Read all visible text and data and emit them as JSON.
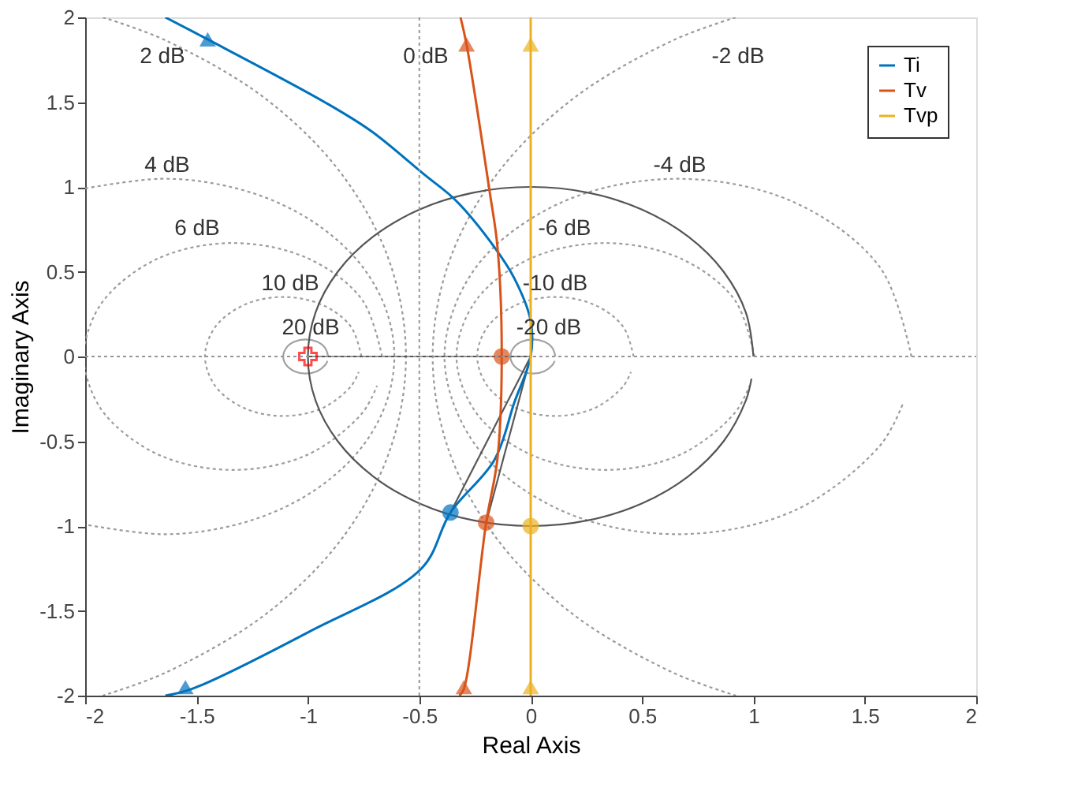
{
  "chart_data": {
    "type": "line",
    "xlabel": "Real Axis",
    "ylabel": "Imaginary Axis",
    "xlim": [
      -2,
      2
    ],
    "ylim": [
      -2,
      2
    ],
    "xticks": [
      -2,
      -1.5,
      -1,
      -0.5,
      0,
      0.5,
      1,
      1.5,
      2
    ],
    "yticks": [
      -2,
      -1.5,
      -1,
      -0.5,
      0,
      0.5,
      1,
      1.5,
      2
    ],
    "grid": false,
    "legend": "top right",
    "series": [
      {
        "color": "#999999",
        "line_style": "dotted",
        "x": [
          -1.921,
          -1.635,
          -1.19,
          -0.848,
          -0.633,
          -0.56,
          -0.633,
          -0.848,
          -1.19,
          -1.635,
          -1.921
        ],
        "values": [
          2,
          1.862,
          1.52,
          1.075,
          0.556,
          0,
          -0.556,
          -1.075,
          -1.52,
          -1.862,
          -2
        ]
      },
      {
        "color": "#9a9a9a",
        "line_style": "dotted",
        "x": [
          0.921,
          0.635,
          0.19,
          -0.152,
          -0.367,
          -0.44,
          -0.367,
          -0.152,
          0.19,
          0.635,
          0.921
        ],
        "values": [
          2,
          1.862,
          1.52,
          1.075,
          0.556,
          0,
          -0.556,
          -1.075,
          -1.52,
          -1.862,
          -2
        ]
      },
      {
        "color": "#9b9b9b",
        "line_style": "dotted",
        "x": [
          -2,
          -1.66,
          -1.389,
          -1.136,
          -0.919,
          -0.752,
          -0.648,
          -0.612,
          -0.648,
          -0.752,
          -0.919,
          -1.136,
          -1.389,
          -1.66,
          -2
        ],
        "values": [
          0.991,
          1.048,
          1.012,
          0.908,
          0.741,
          0.524,
          0.271,
          0,
          -0.271,
          -0.524,
          -0.741,
          -0.908,
          -1.012,
          -1.048,
          -0.991
        ]
      },
      {
        "color": "#9c9c9c",
        "line_style": "dotted",
        "x": [
          1.709,
          1.569,
          1.185,
          0.661,
          0.137,
          -0.247,
          -0.387,
          -0.247,
          0.137,
          0.661,
          1.185,
          1.569,
          1.673
        ],
        "values": [
          0,
          0.524,
          0.908,
          1.048,
          0.908,
          0.524,
          0,
          -0.524,
          -0.908,
          -1.048,
          -0.908,
          -0.524,
          -0.271
        ]
      },
      {
        "color": "#9d9d9d",
        "line_style": "dotted",
        "x": [
          -0.667,
          -0.757,
          -1.001,
          -1.336,
          -1.671,
          -1.915,
          -2,
          -2,
          -1.915,
          -1.671,
          -1.336,
          -1.001,
          -0.757,
          -0.69
        ],
        "values": [
          0,
          0.335,
          0.579,
          0.669,
          0.579,
          0.335,
          0.082,
          -0.082,
          -0.335,
          -0.579,
          -0.669,
          -0.579,
          -0.335,
          -0.173
        ]
      },
      {
        "color": "#9e9e9e",
        "line_style": "dotted",
        "x": [
          1.005,
          0.915,
          0.671,
          0.336,
          0.001,
          -0.243,
          -0.333,
          -0.243,
          0.001,
          0.336,
          0.671,
          0.915,
          0.982
        ],
        "values": [
          0,
          0.335,
          0.579,
          0.669,
          0.579,
          0.335,
          0,
          -0.335,
          -0.579,
          -0.669,
          -0.579,
          -0.335,
          -0.173
        ]
      },
      {
        "color": "#9f9f9f",
        "line_style": "dotted",
        "x": [
          -0.76,
          -0.807,
          -0.935,
          -1.111,
          -1.287,
          -1.415,
          -1.462,
          -1.415,
          -1.287,
          -1.111,
          -0.935,
          -0.807,
          -0.772
        ],
        "values": [
          0,
          0.176,
          0.304,
          0.351,
          0.304,
          0.176,
          0,
          -0.176,
          -0.304,
          -0.351,
          -0.304,
          -0.176,
          -0.091
        ]
      },
      {
        "color": "#a0a0a0",
        "line_style": "dotted",
        "x": [
          0.462,
          0.415,
          0.287,
          0.111,
          -0.065,
          -0.193,
          -0.24,
          -0.193,
          -0.065,
          0.111,
          0.287,
          0.415,
          0.45
        ],
        "values": [
          0,
          0.176,
          0.304,
          0.351,
          0.304,
          0.176,
          0,
          -0.176,
          -0.304,
          -0.351,
          -0.304,
          -0.176,
          -0.091
        ]
      },
      {
        "color": "#a1a1a1",
        "line_style": "solid",
        "x": [
          -0.909,
          -0.923,
          -0.959,
          -1.01,
          -1.061,
          -1.097,
          -1.111,
          -1.097,
          -1.061,
          -1.01,
          -0.959,
          -0.923,
          -0.912
        ],
        "values": [
          0,
          0.051,
          0.087,
          0.101,
          0.087,
          0.051,
          0,
          -0.051,
          -0.087,
          -0.101,
          -0.087,
          -0.051,
          -0.026
        ]
      },
      {
        "color": "#a2a2a2",
        "line_style": "solid",
        "x": [
          0.111,
          0.097,
          0.061,
          0.01,
          -0.041,
          -0.077,
          -0.091,
          -0.077,
          -0.041,
          0.01,
          0.061,
          0.097,
          0.108
        ],
        "values": [
          0,
          0.051,
          0.087,
          0.101,
          0.087,
          0.051,
          0,
          -0.051,
          -0.087,
          -0.101,
          -0.087,
          -0.051,
          -0.026
        ]
      },
      {
        "color": "#555555",
        "line_style": "solid",
        "x": [
          1,
          0.966,
          0.866,
          0.707,
          0.5,
          0.259,
          0,
          -0.259,
          -0.5,
          -0.707,
          -0.866,
          -0.966,
          -1,
          -0.966,
          -0.866,
          -0.707,
          -0.5,
          -0.259,
          0,
          0.259,
          0.5,
          0.707,
          0.866,
          0.966,
          0.991
        ],
        "values": [
          0,
          0.259,
          0.5,
          0.707,
          0.866,
          0.966,
          1,
          0.966,
          0.866,
          0.707,
          0.5,
          0.259,
          0,
          -0.259,
          -0.5,
          -0.707,
          -0.866,
          -0.966,
          -1,
          -0.966,
          -0.866,
          -0.707,
          -0.5,
          -0.259,
          -0.131
        ]
      },
      {
        "color": "#565656",
        "line_style": "solid",
        "x": [
          -1,
          0
        ],
        "values": [
          0,
          0
        ]
      },
      {
        "color": "#575757",
        "line_style": "solid",
        "x": [
          0,
          -0.36
        ],
        "values": [
          0,
          -0.92
        ]
      },
      {
        "color": "#585858",
        "line_style": "solid",
        "x": [
          0,
          -0.2
        ],
        "values": [
          0,
          -0.98
        ]
      },
      {
        "name": "Ti",
        "color": "#0072bd",
        "line_style": "solid",
        "x": [
          -1.64,
          -1.45,
          -0.925,
          -0.717,
          -0.475,
          -0.336,
          -0.163,
          -0.073,
          0,
          0,
          -0.073,
          -0.163,
          -0.36,
          -0.49,
          -0.99,
          -1.52,
          -1.64
        ],
        "values": [
          2,
          1.87,
          1.5,
          1.33,
          1.07,
          0.92,
          0.645,
          0.46,
          0.21,
          0,
          -0.27,
          -0.61,
          -0.92,
          -1.25,
          -1.62,
          -1.96,
          -2
        ]
      },
      {
        "name": "Tv",
        "color": "#d95319",
        "line_style": "solid",
        "x": [
          -0.315,
          -0.288,
          -0.184,
          -0.149,
          -0.13,
          -0.149,
          -0.2,
          -0.3,
          -0.32
        ],
        "values": [
          2,
          1.84,
          0.97,
          0.645,
          0,
          -0.6,
          -0.98,
          -1.96,
          -2
        ]
      },
      {
        "name": "Tvp",
        "color": "#edb120",
        "line_style": "solid",
        "x": [
          0,
          0
        ],
        "values": [
          2,
          -2
        ]
      },
      {
        "type": "scatter",
        "color": "#0072bd",
        "marker": "circle",
        "x": [
          -0.36
        ],
        "values": [
          -0.92
        ]
      },
      {
        "type": "scatter",
        "color": "#0072bd",
        "marker": "triangle",
        "x": [
          -1.45,
          -1.55
        ],
        "values": [
          1.87,
          -1.95
        ]
      },
      {
        "type": "scatter",
        "color": "#d95319",
        "marker": "circle",
        "x": [
          -0.13,
          -0.2
        ],
        "values": [
          0,
          -0.98
        ]
      },
      {
        "type": "scatter",
        "color": "#d95319",
        "marker": "triangle",
        "x": [
          -0.288,
          -0.3
        ],
        "values": [
          1.84,
          -1.95
        ]
      },
      {
        "type": "scatter",
        "color": "#edb120",
        "marker": "circle",
        "x": [
          0
        ],
        "values": [
          -1
        ]
      },
      {
        "type": "scatter",
        "color": "#edb120",
        "marker": "triangle",
        "x": [
          0,
          0
        ],
        "values": [
          1.84,
          -1.95
        ]
      },
      {
        "type": "scatter",
        "color": "#ff0000",
        "marker": "cross",
        "x": [
          -1
        ],
        "values": [
          0
        ]
      }
    ],
    "ref_lines": [
      {
        "axis": "x",
        "value": -0.5,
        "color": "#979797",
        "line_style": "dotted"
      },
      {
        "axis": "y",
        "value": 0,
        "color": "#969696",
        "line_style": "dotted"
      }
    ],
    "annotations": [
      "2 dB",
      "0 dB",
      "-2 dB",
      "4 dB",
      "-4 dB",
      "6 dB",
      "-6 dB",
      "10 dB",
      "-10 dB",
      "20 dB",
      "-20 dB"
    ]
  }
}
